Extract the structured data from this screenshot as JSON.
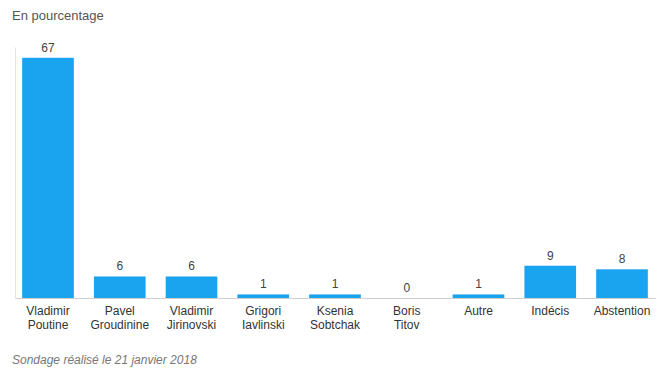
{
  "chart_data": {
    "type": "bar",
    "title": "En pourcentage",
    "annotations": [
      "Sondage réalisé le 21 janvier 2018"
    ],
    "categories": [
      "Vladimir Poutine",
      "Pavel Groudinine",
      "Vladimir Jirinovski",
      "Grigori Iavlinski",
      "Ksenia Sobtchak",
      "Boris Titov",
      "Autre",
      "Indécis",
      "Abstention"
    ],
    "values": [
      67,
      6,
      6,
      1,
      1,
      0,
      1,
      9,
      8
    ],
    "color": "#1aa3ef",
    "ylim": [
      0,
      70
    ],
    "yticks": [
      0
    ],
    "grid": false,
    "data_labels": true,
    "tick_labels": "x"
  }
}
